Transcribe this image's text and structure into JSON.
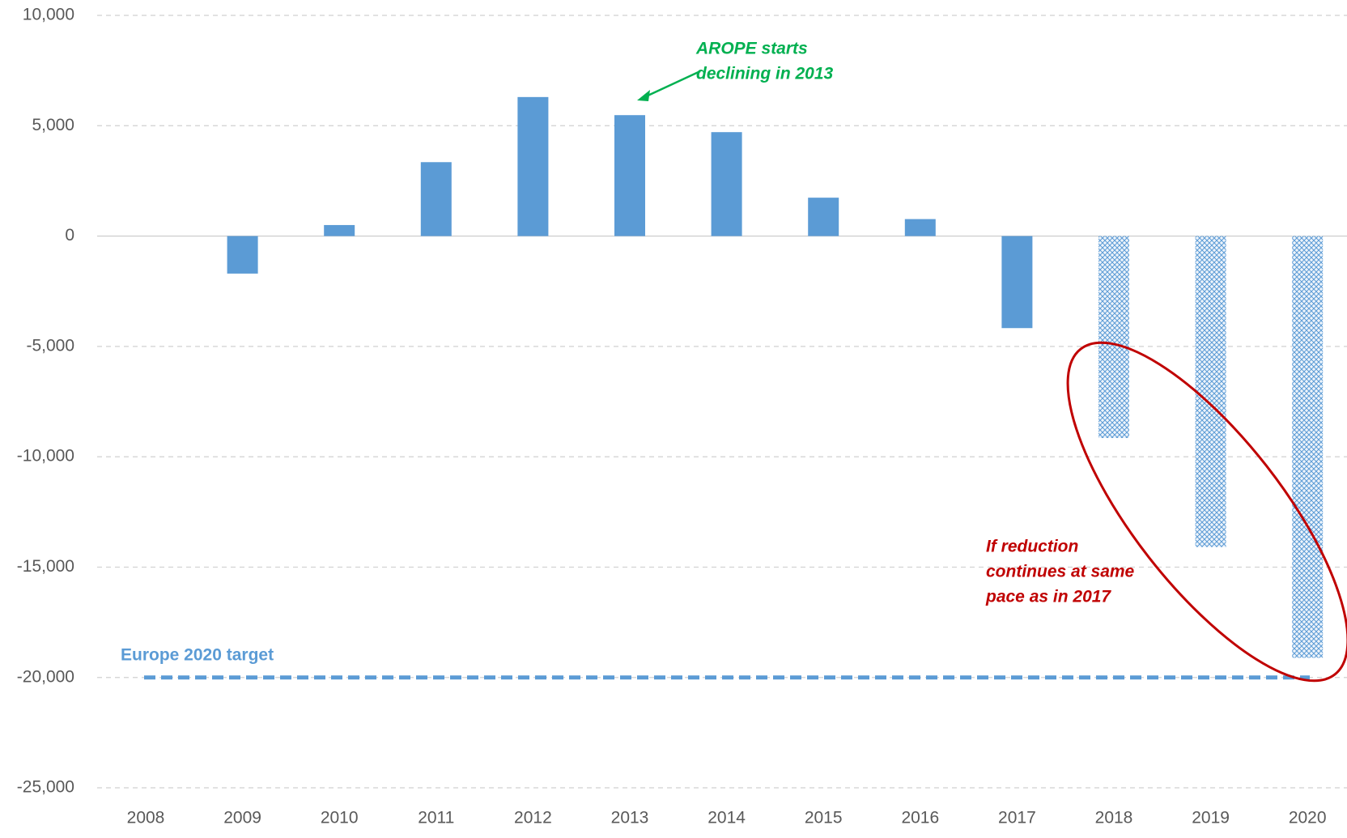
{
  "chart_data": {
    "type": "bar",
    "categories": [
      "2008",
      "2009",
      "2010",
      "2011",
      "2012",
      "2013",
      "2014",
      "2015",
      "2016",
      "2017",
      "2018",
      "2019",
      "2020"
    ],
    "values": [
      0,
      -1700,
      500,
      3350,
      6300,
      5480,
      4710,
      1740,
      770,
      -4170,
      null,
      null,
      null
    ],
    "projected_values": [
      null,
      null,
      null,
      null,
      null,
      null,
      null,
      null,
      null,
      null,
      -9150,
      -14090,
      -19110
    ],
    "color": "#5b9bd5",
    "ylim": [
      -25000,
      10000
    ],
    "yticks": [
      {
        "value": -25000,
        "label": "-25,000"
      },
      {
        "value": -20000,
        "label": "-20,000"
      },
      {
        "value": -15000,
        "label": "-15,000"
      },
      {
        "value": -10000,
        "label": "-10,000"
      },
      {
        "value": -5000,
        "label": "-5,000"
      },
      0,
      {
        "value": 5000,
        "label": "5,000"
      },
      {
        "value": 10000,
        "label": "10,000"
      }
    ],
    "grid": true,
    "target": {
      "label": "Europe 2020 target",
      "value": -20000
    },
    "annotations": [
      {
        "lines": [
          "AROPE starts",
          "declining in 2013"
        ],
        "color": "#00b050"
      },
      {
        "lines": [
          "If reduction",
          "continues at same",
          "pace as in 2017"
        ],
        "color": "#c00000"
      }
    ]
  }
}
